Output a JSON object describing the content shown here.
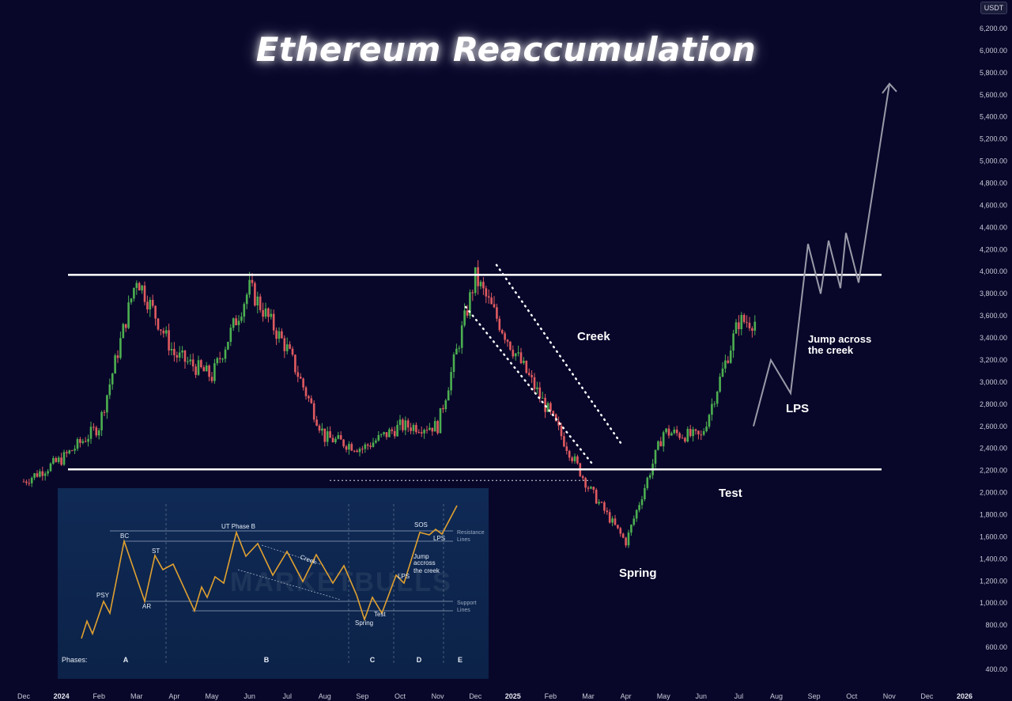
{
  "title": "Ethereum Reaccumulation",
  "currency_badge": "USDT",
  "chart_data": {
    "type": "candlestick",
    "y_axis": {
      "unit": "USDT",
      "ticks": [
        "6,200.00",
        "6,000.00",
        "5,800.00",
        "5,600.00",
        "5,400.00",
        "5,200.00",
        "5,000.00",
        "4,800.00",
        "4,600.00",
        "4,400.00",
        "4,200.00",
        "4,000.00",
        "3,800.00",
        "3,600.00",
        "3,400.00",
        "3,200.00",
        "3,000.00",
        "2,800.00",
        "2,600.00",
        "2,400.00",
        "2,200.00",
        "2,000.00",
        "1,800.00",
        "1,600.00",
        "1,400.00",
        "1,200.00",
        "1,000.00",
        "800.00",
        "600.00",
        "400.00"
      ],
      "range": [
        400,
        6200
      ]
    },
    "x_axis": {
      "ticks": [
        "Dec",
        "2024",
        "Feb",
        "Mar",
        "Apr",
        "May",
        "Jun",
        "Jul",
        "Aug",
        "Sep",
        "Oct",
        "Nov",
        "Dec",
        "2025",
        "Feb",
        "Mar",
        "Apr",
        "May",
        "Jun",
        "Jul",
        "Aug",
        "Sep",
        "Oct",
        "Nov",
        "Dec",
        "2026"
      ],
      "bold_ticks": [
        "2024",
        "2025",
        "2026"
      ]
    },
    "price_path": [
      {
        "t": "Dec 2023",
        "p": 2100
      },
      {
        "t": "Jan 2024",
        "p": 2300
      },
      {
        "t": "Feb 2024",
        "p": 2600
      },
      {
        "t": "Mar 2024",
        "p": 3950
      },
      {
        "t": "Apr 2024",
        "p": 3250
      },
      {
        "t": "May 2024",
        "p": 3050
      },
      {
        "t": "Jun 2024",
        "p": 3850
      },
      {
        "t": "Jul 2024",
        "p": 3300
      },
      {
        "t": "Aug 2024",
        "p": 2500
      },
      {
        "t": "Sep 2024",
        "p": 2400
      },
      {
        "t": "Oct 2024",
        "p": 2600
      },
      {
        "t": "Nov 2024",
        "p": 2600
      },
      {
        "t": "Dec 2024",
        "p": 3950
      },
      {
        "t": "Jan 2025",
        "p": 3300
      },
      {
        "t": "Feb 2025",
        "p": 2700
      },
      {
        "t": "Mar 2025",
        "p": 2050
      },
      {
        "t": "Apr 2025",
        "p": 1550
      },
      {
        "t": "May 2025",
        "p": 2550
      },
      {
        "t": "Jun 2025",
        "p": 2500
      },
      {
        "t": "Jul 2025",
        "p": 3550
      }
    ],
    "levels": [
      {
        "name": "Resistance",
        "value": 3970
      },
      {
        "name": "Support",
        "value": 2210
      }
    ],
    "projection": [
      {
        "t": "Jul 2025",
        "p": 2600
      },
      {
        "t": "Jul 2025",
        "p": 3200
      },
      {
        "t": "Aug 2025",
        "p": 2900
      },
      {
        "t": "Aug 2025",
        "p": 4250
      },
      {
        "t": "Sep 2025",
        "p": 3800
      },
      {
        "t": "Sep 2025",
        "p": 4280
      },
      {
        "t": "Sep 2025",
        "p": 3850
      },
      {
        "t": "Oct 2025",
        "p": 4350
      },
      {
        "t": "Oct 2025",
        "p": 3900
      },
      {
        "t": "Nov 2025",
        "p": 5700
      }
    ],
    "annotations": {
      "creek": "Creek",
      "jump_line1": "Jump across",
      "jump_line2": "the creek",
      "lps": "LPS",
      "test": "Test",
      "spring": "Spring"
    },
    "colors": {
      "up": "#4caf50",
      "down": "#e05a5f",
      "level": "#ffffff",
      "projection": "#9a9aa8",
      "background": "#08072a"
    }
  },
  "inset": {
    "watermark": "MARKETBULLS",
    "labels": {
      "bc": "BC",
      "psy": "PSY",
      "ar": "AR",
      "st": "ST",
      "ut": "UT Phase B",
      "creek": "Creek",
      "sos": "SOS",
      "lps": "LPS",
      "jump1": "Jump",
      "jump2": "accross",
      "jump3": "the creek",
      "lps2": "LPS",
      "spring": "Spring",
      "test": "Test",
      "resistance1": "Resistance",
      "resistance2": "Lines",
      "support1": "Support",
      "support2": "Lines"
    },
    "phases_label": "Phases:",
    "phases": [
      "A",
      "B",
      "C",
      "D",
      "E"
    ],
    "colors": {
      "path": "#e0a030",
      "lines": "#b8c4d8"
    }
  }
}
